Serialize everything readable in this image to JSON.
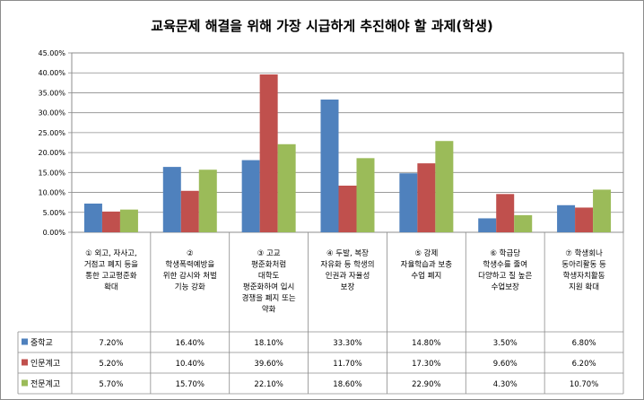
{
  "chart_data": {
    "type": "bar",
    "title": "교육문제 해결을 위해 가장 시급하게 추진해야 할 과제(학생)",
    "xlabel": "",
    "ylabel": "",
    "ylim": [
      0,
      45
    ],
    "y_ticks": [
      "0.00%",
      "5.00%",
      "10.00%",
      "15.00%",
      "20.00%",
      "25.00%",
      "30.00%",
      "35.00%",
      "40.00%",
      "45.00%"
    ],
    "grid": true,
    "legend": "data-table-left",
    "categories": [
      [
        "① 외고, 자사고,",
        "거점고 폐지 등을",
        "통한 고교평준화",
        "확대"
      ],
      [
        "②",
        "학생폭력예방을",
        "위한 감시와 처벌",
        "기능 강화"
      ],
      [
        "③ 고교",
        "평준화처럼",
        "대학도",
        "평준화하여 입시",
        "경쟁을 폐지 또는",
        "약화"
      ],
      [
        "④ 두발, 복장",
        "자유화 등 학생의",
        "인권과 자율성",
        "보장"
      ],
      [
        "⑤ 강제",
        "자율학습과 보충",
        "수업 폐지"
      ],
      [
        "⑥ 학급당",
        "학생수를 줄여",
        "다양하고 질 높은",
        "수업보장"
      ],
      [
        "⑦ 학생회나",
        "동아리활동 등",
        "학생자치활동",
        "지원 확대"
      ]
    ],
    "series": [
      {
        "name": "중학교",
        "color": "#4f81bd",
        "values": [
          7.2,
          16.4,
          18.1,
          33.3,
          14.8,
          3.5,
          6.8
        ],
        "labels": [
          "7.20%",
          "16.40%",
          "18.10%",
          "33.30%",
          "14.80%",
          "3.50%",
          "6.80%"
        ]
      },
      {
        "name": "인문계고",
        "color": "#c0504d",
        "values": [
          5.2,
          10.4,
          39.6,
          11.7,
          17.3,
          9.6,
          6.2
        ],
        "labels": [
          "5.20%",
          "10.40%",
          "39.60%",
          "11.70%",
          "17.30%",
          "9.60%",
          "6.20%"
        ]
      },
      {
        "name": "전문계고",
        "color": "#9bbb59",
        "values": [
          5.7,
          15.7,
          22.1,
          18.6,
          22.9,
          4.3,
          10.7
        ],
        "labels": [
          "5.70%",
          "15.70%",
          "22.10%",
          "18.60%",
          "22.90%",
          "4.30%",
          "10.70%"
        ]
      }
    ]
  }
}
